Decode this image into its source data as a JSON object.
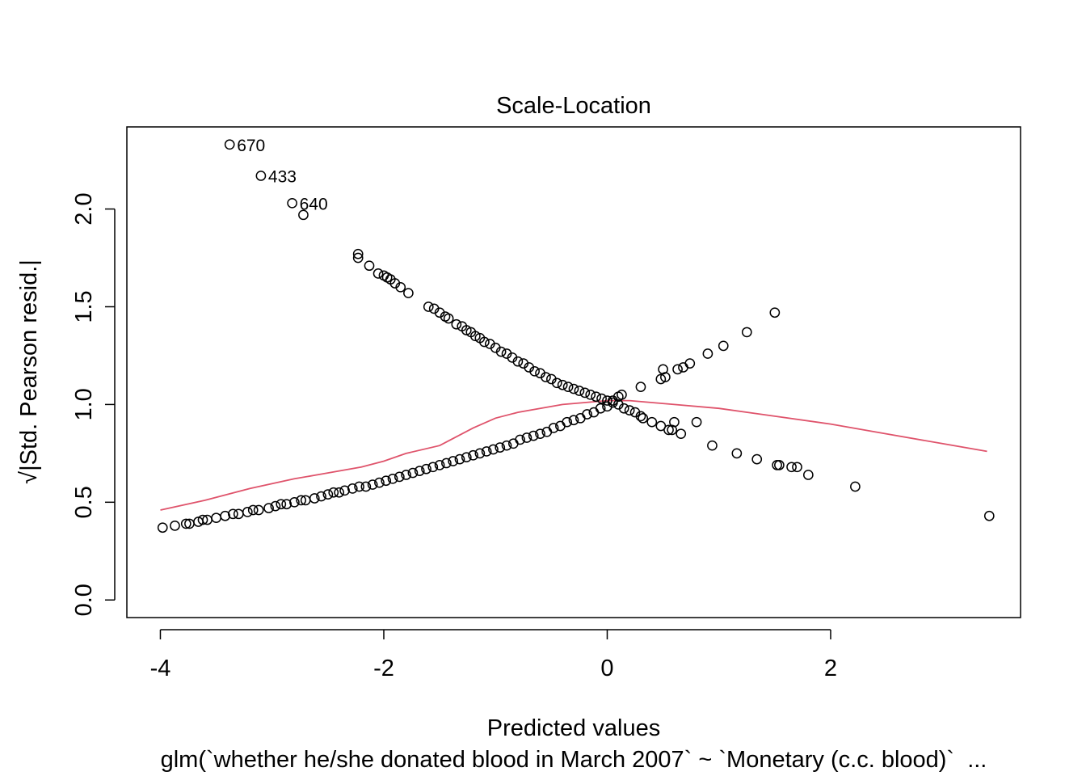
{
  "chart_data": {
    "type": "scatter",
    "title": "Scale-Location",
    "xlabel": "Predicted values",
    "ylabel": "√|Std. Pearson resid.|",
    "subtitle": "glm(`whether he/she donated blood in March 2007` ~ `Monetary (c.c. blood)`  ...",
    "xlim": [
      -4.3,
      3.7
    ],
    "ylim": [
      -0.09,
      2.42
    ],
    "x_ticks": [
      -4,
      -2,
      0,
      2
    ],
    "x_tick_labels": [
      "-4",
      "-2",
      "0",
      "2"
    ],
    "y_ticks": [
      0.0,
      0.5,
      1.0,
      1.5,
      2.0
    ],
    "y_tick_labels": [
      "0.0",
      "0.5",
      "1.0",
      "1.5",
      "2.0"
    ],
    "grid": false,
    "series": [
      {
        "kind": "points",
        "color": "#000000",
        "points": [
          [
            -3.38,
            2.33
          ],
          [
            -3.1,
            2.17
          ],
          [
            -2.82,
            2.03
          ],
          [
            -2.72,
            1.97
          ],
          [
            -2.23,
            1.77
          ],
          [
            -2.23,
            1.75
          ],
          [
            -2.13,
            1.71
          ],
          [
            -2.05,
            1.67
          ],
          [
            -2.0,
            1.66
          ],
          [
            -1.97,
            1.65
          ],
          [
            -1.94,
            1.64
          ],
          [
            -1.9,
            1.62
          ],
          [
            -1.85,
            1.6
          ],
          [
            -1.78,
            1.57
          ],
          [
            -1.6,
            1.5
          ],
          [
            -1.55,
            1.49
          ],
          [
            -1.5,
            1.47
          ],
          [
            -1.45,
            1.45
          ],
          [
            -1.42,
            1.44
          ],
          [
            -1.35,
            1.41
          ],
          [
            -1.3,
            1.4
          ],
          [
            -1.26,
            1.38
          ],
          [
            -1.22,
            1.37
          ],
          [
            -1.18,
            1.35
          ],
          [
            -1.14,
            1.34
          ],
          [
            -1.1,
            1.32
          ],
          [
            -1.05,
            1.31
          ],
          [
            -1.0,
            1.29
          ],
          [
            -0.95,
            1.27
          ],
          [
            -0.9,
            1.26
          ],
          [
            -0.85,
            1.24
          ],
          [
            -0.8,
            1.22
          ],
          [
            -0.75,
            1.21
          ],
          [
            -0.7,
            1.19
          ],
          [
            -0.65,
            1.17
          ],
          [
            -0.6,
            1.16
          ],
          [
            -0.55,
            1.14
          ],
          [
            -0.5,
            1.13
          ],
          [
            -0.45,
            1.11
          ],
          [
            -0.4,
            1.1
          ],
          [
            -0.35,
            1.09
          ],
          [
            -0.3,
            1.08
          ],
          [
            -0.25,
            1.07
          ],
          [
            -0.2,
            1.06
          ],
          [
            -0.15,
            1.05
          ],
          [
            -0.1,
            1.04
          ],
          [
            -0.05,
            1.03
          ],
          [
            0.0,
            1.02
          ],
          [
            0.05,
            1.01
          ],
          [
            0.1,
            1.0
          ],
          [
            0.15,
            0.98
          ],
          [
            0.2,
            0.97
          ],
          [
            0.25,
            0.96
          ],
          [
            0.3,
            0.94
          ],
          [
            0.32,
            0.93
          ],
          [
            0.4,
            0.91
          ],
          [
            0.48,
            0.89
          ],
          [
            0.55,
            0.87
          ],
          [
            0.58,
            0.87
          ],
          [
            0.6,
            0.91
          ],
          [
            0.66,
            0.85
          ],
          [
            0.8,
            0.91
          ],
          [
            0.94,
            0.79
          ],
          [
            1.16,
            0.75
          ],
          [
            1.34,
            0.72
          ],
          [
            1.52,
            0.69
          ],
          [
            1.54,
            0.69
          ],
          [
            1.65,
            0.68
          ],
          [
            1.7,
            0.68
          ],
          [
            1.8,
            0.64
          ],
          [
            2.22,
            0.58
          ],
          [
            3.42,
            0.43
          ],
          [
            -3.98,
            0.37
          ],
          [
            -3.87,
            0.38
          ],
          [
            -3.77,
            0.39
          ],
          [
            -3.74,
            0.39
          ],
          [
            -3.66,
            0.4
          ],
          [
            -3.62,
            0.41
          ],
          [
            -3.58,
            0.41
          ],
          [
            -3.5,
            0.42
          ],
          [
            -3.42,
            0.43
          ],
          [
            -3.35,
            0.44
          ],
          [
            -3.3,
            0.44
          ],
          [
            -3.22,
            0.45
          ],
          [
            -3.17,
            0.46
          ],
          [
            -3.12,
            0.46
          ],
          [
            -3.03,
            0.47
          ],
          [
            -2.97,
            0.48
          ],
          [
            -2.92,
            0.49
          ],
          [
            -2.87,
            0.49
          ],
          [
            -2.8,
            0.5
          ],
          [
            -2.74,
            0.51
          ],
          [
            -2.7,
            0.51
          ],
          [
            -2.62,
            0.52
          ],
          [
            -2.56,
            0.53
          ],
          [
            -2.5,
            0.54
          ],
          [
            -2.45,
            0.55
          ],
          [
            -2.4,
            0.55
          ],
          [
            -2.35,
            0.56
          ],
          [
            -2.28,
            0.57
          ],
          [
            -2.22,
            0.58
          ],
          [
            -2.16,
            0.58
          ],
          [
            -2.1,
            0.59
          ],
          [
            -2.04,
            0.6
          ],
          [
            -1.98,
            0.61
          ],
          [
            -1.92,
            0.62
          ],
          [
            -1.86,
            0.63
          ],
          [
            -1.8,
            0.64
          ],
          [
            -1.74,
            0.65
          ],
          [
            -1.68,
            0.66
          ],
          [
            -1.62,
            0.67
          ],
          [
            -1.56,
            0.68
          ],
          [
            -1.5,
            0.69
          ],
          [
            -1.44,
            0.7
          ],
          [
            -1.38,
            0.71
          ],
          [
            -1.32,
            0.72
          ],
          [
            -1.26,
            0.73
          ],
          [
            -1.2,
            0.74
          ],
          [
            -1.14,
            0.75
          ],
          [
            -1.08,
            0.76
          ],
          [
            -1.02,
            0.77
          ],
          [
            -0.96,
            0.78
          ],
          [
            -0.9,
            0.79
          ],
          [
            -0.84,
            0.8
          ],
          [
            -0.78,
            0.82
          ],
          [
            -0.72,
            0.83
          ],
          [
            -0.66,
            0.84
          ],
          [
            -0.6,
            0.85
          ],
          [
            -0.54,
            0.86
          ],
          [
            -0.48,
            0.88
          ],
          [
            -0.42,
            0.89
          ],
          [
            -0.36,
            0.91
          ],
          [
            -0.3,
            0.92
          ],
          [
            -0.24,
            0.93
          ],
          [
            -0.18,
            0.95
          ],
          [
            -0.12,
            0.96
          ],
          [
            -0.06,
            0.98
          ],
          [
            0.0,
            0.99
          ],
          [
            0.05,
            1.02
          ],
          [
            0.1,
            1.04
          ],
          [
            0.13,
            1.05
          ],
          [
            0.3,
            1.09
          ],
          [
            0.48,
            1.13
          ],
          [
            0.5,
            1.18
          ],
          [
            0.52,
            1.14
          ],
          [
            0.63,
            1.18
          ],
          [
            0.68,
            1.19
          ],
          [
            0.74,
            1.21
          ],
          [
            0.9,
            1.26
          ],
          [
            1.04,
            1.3
          ],
          [
            1.25,
            1.37
          ],
          [
            1.5,
            1.47
          ]
        ]
      },
      {
        "kind": "line",
        "color": "#DF536B",
        "points": [
          [
            -4.0,
            0.46
          ],
          [
            -3.6,
            0.51
          ],
          [
            -3.2,
            0.57
          ],
          [
            -2.8,
            0.62
          ],
          [
            -2.6,
            0.64
          ],
          [
            -2.4,
            0.66
          ],
          [
            -2.2,
            0.68
          ],
          [
            -2.0,
            0.71
          ],
          [
            -1.8,
            0.75
          ],
          [
            -1.5,
            0.79
          ],
          [
            -1.4,
            0.82
          ],
          [
            -1.2,
            0.88
          ],
          [
            -1.0,
            0.93
          ],
          [
            -0.8,
            0.96
          ],
          [
            -0.6,
            0.98
          ],
          [
            -0.4,
            1.0
          ],
          [
            -0.2,
            1.01
          ],
          [
            0.0,
            1.02
          ],
          [
            0.2,
            1.02
          ],
          [
            0.6,
            1.0
          ],
          [
            1.0,
            0.98
          ],
          [
            1.5,
            0.94
          ],
          [
            2.0,
            0.9
          ],
          [
            2.5,
            0.85
          ],
          [
            3.0,
            0.8
          ],
          [
            3.4,
            0.76
          ]
        ]
      }
    ],
    "annotations": [
      {
        "x": -3.38,
        "y": 2.33,
        "text": "670"
      },
      {
        "x": -3.1,
        "y": 2.17,
        "text": "433"
      },
      {
        "x": -2.82,
        "y": 2.03,
        "text": "640"
      }
    ]
  }
}
